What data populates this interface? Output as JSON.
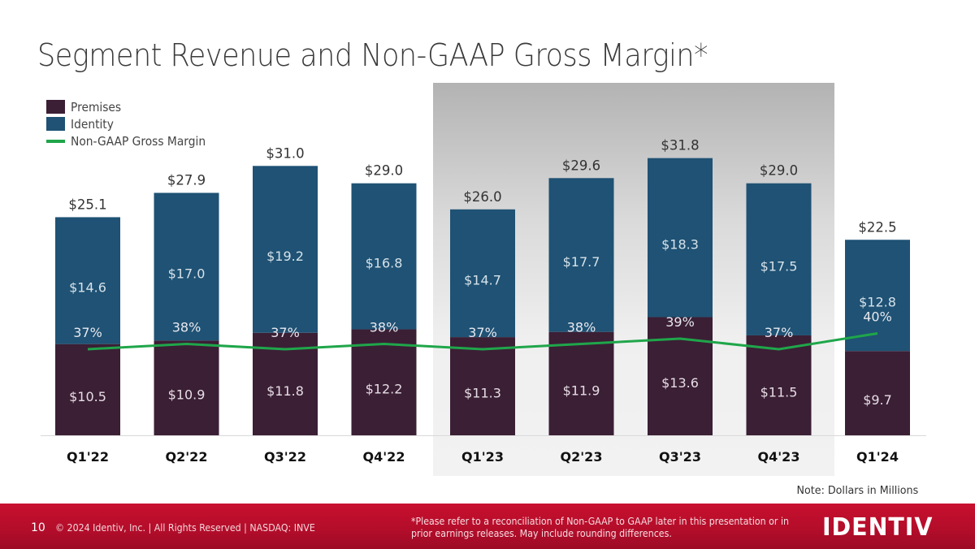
{
  "slide": {
    "title": "Segment Revenue and Non-GAAP Gross Margin*",
    "note": "Note: Dollars in Millions",
    "page_number": "10",
    "copyright": "© 2024 Identiv, Inc.  |  All Rights Reserved  |  NASDAQ: INVE",
    "disclaimer_line1": "*Please refer to a reconciliation of Non-GAAP to GAAP later in this presentation or in",
    "disclaimer_line2": "prior earnings releases. May include rounding differences.",
    "logo_text": "IDENTIV"
  },
  "colors": {
    "premises": "#3b1f35",
    "identity": "#1f5274",
    "margin_line": "#1fa64a",
    "footer": "#c8102e"
  },
  "chart_data": {
    "type": "bar",
    "stacked": true,
    "title": "Segment Revenue and Non-GAAP Gross Margin*",
    "xlabel": "",
    "ylabel": "",
    "units": "Dollars in Millions",
    "categories": [
      "Q1'22",
      "Q2'22",
      "Q3'22",
      "Q4'22",
      "Q1'23",
      "Q2'23",
      "Q3'23",
      "Q4'23",
      "Q1'24"
    ],
    "highlighted_categories": [
      "Q1'23",
      "Q2'23",
      "Q3'23",
      "Q4'23"
    ],
    "series": [
      {
        "name": "Premises",
        "values": [
          10.5,
          10.9,
          11.8,
          12.2,
          11.3,
          11.9,
          13.6,
          11.5,
          9.7
        ],
        "labels": [
          "$10.5",
          "$10.9",
          "$11.8",
          "$12.2",
          "$11.3",
          "$11.9",
          "$13.6",
          "$11.5",
          "$9.7"
        ]
      },
      {
        "name": "Identity",
        "values": [
          14.6,
          17.0,
          19.2,
          16.8,
          14.7,
          17.7,
          18.3,
          17.5,
          12.8
        ],
        "labels": [
          "$14.6",
          "$17.0",
          "$19.2",
          "$16.8",
          "$14.7",
          "$17.7",
          "$18.3",
          "$17.5",
          "$12.8"
        ]
      }
    ],
    "totals": [
      25.1,
      27.9,
      31.0,
      29.0,
      26.0,
      29.6,
      31.8,
      29.0,
      22.5
    ],
    "total_labels": [
      "$25.1",
      "$27.9",
      "$31.0",
      "$29.0",
      "$26.0",
      "$29.6",
      "$31.8",
      "$29.0",
      "$22.5"
    ],
    "line_series": {
      "name": "Non-GAAP Gross Margin",
      "values": [
        37,
        38,
        37,
        38,
        37,
        38,
        39,
        37,
        40
      ],
      "labels": [
        "37%",
        "38%",
        "37%",
        "38%",
        "37%",
        "38%",
        "39%",
        "37%",
        "40%"
      ]
    },
    "legend": [
      "Premises",
      "Identity",
      "Non-GAAP Gross Margin"
    ],
    "legend_position": "top-left",
    "ylim": [
      0,
      35
    ],
    "grid": false
  }
}
